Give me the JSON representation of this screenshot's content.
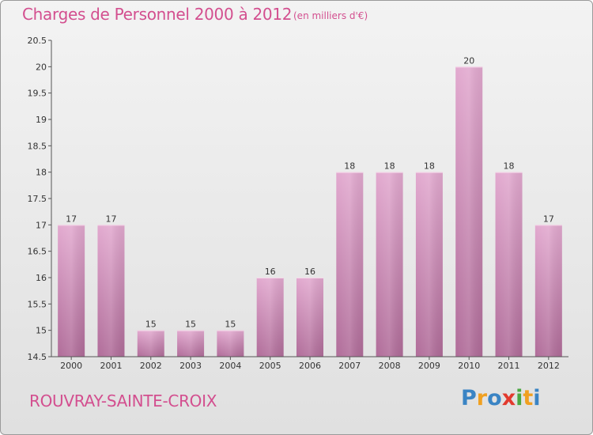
{
  "header": {
    "title": "Charges de Personnel 2000 à 2012",
    "subtitle": "(en milliers d'€)"
  },
  "footer": {
    "commune": "ROUVRAY-SAINTE-CROIX",
    "logo_letters": [
      "P",
      "r",
      "o",
      "x",
      "i",
      "t",
      "i"
    ],
    "logo_colors": [
      "#3a84c4",
      "#f0a020",
      "#3a84c4",
      "#e23a2e",
      "#4aa842",
      "#f0a020",
      "#3a84c4"
    ]
  },
  "chart_data": {
    "type": "bar",
    "categories": [
      "2000",
      "2001",
      "2002",
      "2003",
      "2004",
      "2005",
      "2006",
      "2007",
      "2008",
      "2009",
      "2010",
      "2011",
      "2012"
    ],
    "values": [
      17,
      17,
      15,
      15,
      15,
      16,
      16,
      18,
      18,
      18,
      20,
      18,
      17
    ],
    "data_labels": [
      "17",
      "17",
      "15",
      "15",
      "15",
      "16",
      "16",
      "18",
      "18",
      "18",
      "20",
      "18",
      "17"
    ],
    "y_ticks": [
      "14.5",
      "15",
      "15.5",
      "16",
      "16.5",
      "17",
      "17.5",
      "18",
      "18.5",
      "19",
      "19.5",
      "20",
      "20.5"
    ],
    "ylim": [
      14.5,
      20.5
    ],
    "grid": false,
    "bar_color_top": "#e2a9cf",
    "bar_color_bottom": "#b06c99"
  }
}
